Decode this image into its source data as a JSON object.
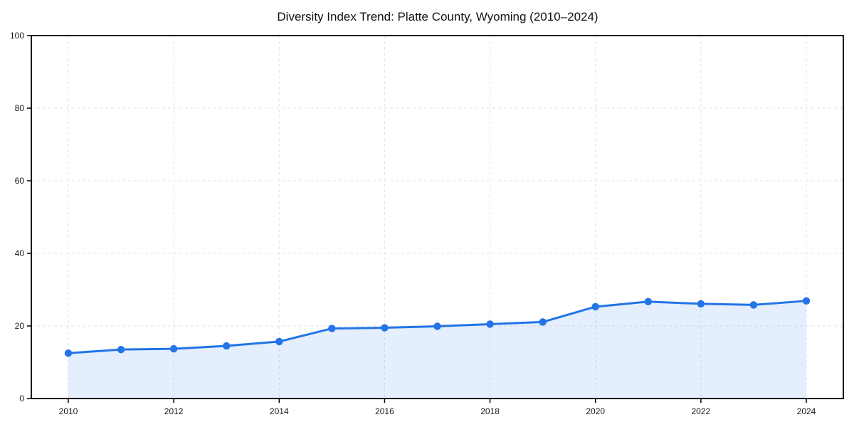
{
  "chart_data": {
    "type": "line",
    "title": "Diversity Index Trend: Platte County, Wyoming (2010–2024)",
    "x": [
      2010,
      2011,
      2012,
      2013,
      2014,
      2015,
      2016,
      2017,
      2018,
      2019,
      2020,
      2021,
      2022,
      2023,
      2024
    ],
    "values": [
      12.5,
      13.5,
      13.7,
      14.5,
      15.7,
      19.3,
      19.5,
      19.9,
      20.5,
      21.1,
      25.3,
      26.7,
      26.1,
      25.8,
      26.9
    ],
    "xticks": [
      2010,
      2012,
      2014,
      2016,
      2018,
      2020,
      2022,
      2024
    ],
    "yticks": [
      0,
      20,
      40,
      60,
      80,
      100
    ],
    "ylim": [
      0,
      100
    ],
    "xlabel": "",
    "ylabel": "",
    "legend": "none",
    "grid": "dashed-both",
    "area_fill": true,
    "colors": {
      "line": "#2274e8",
      "marker": "#2274e8",
      "fill": "rgba(34,116,232,0.12)",
      "grid": "#e3e3e3",
      "spine": "#000000",
      "tick_label": "#1a1a1a",
      "title": "#111111",
      "background": "#ffffff"
    }
  }
}
